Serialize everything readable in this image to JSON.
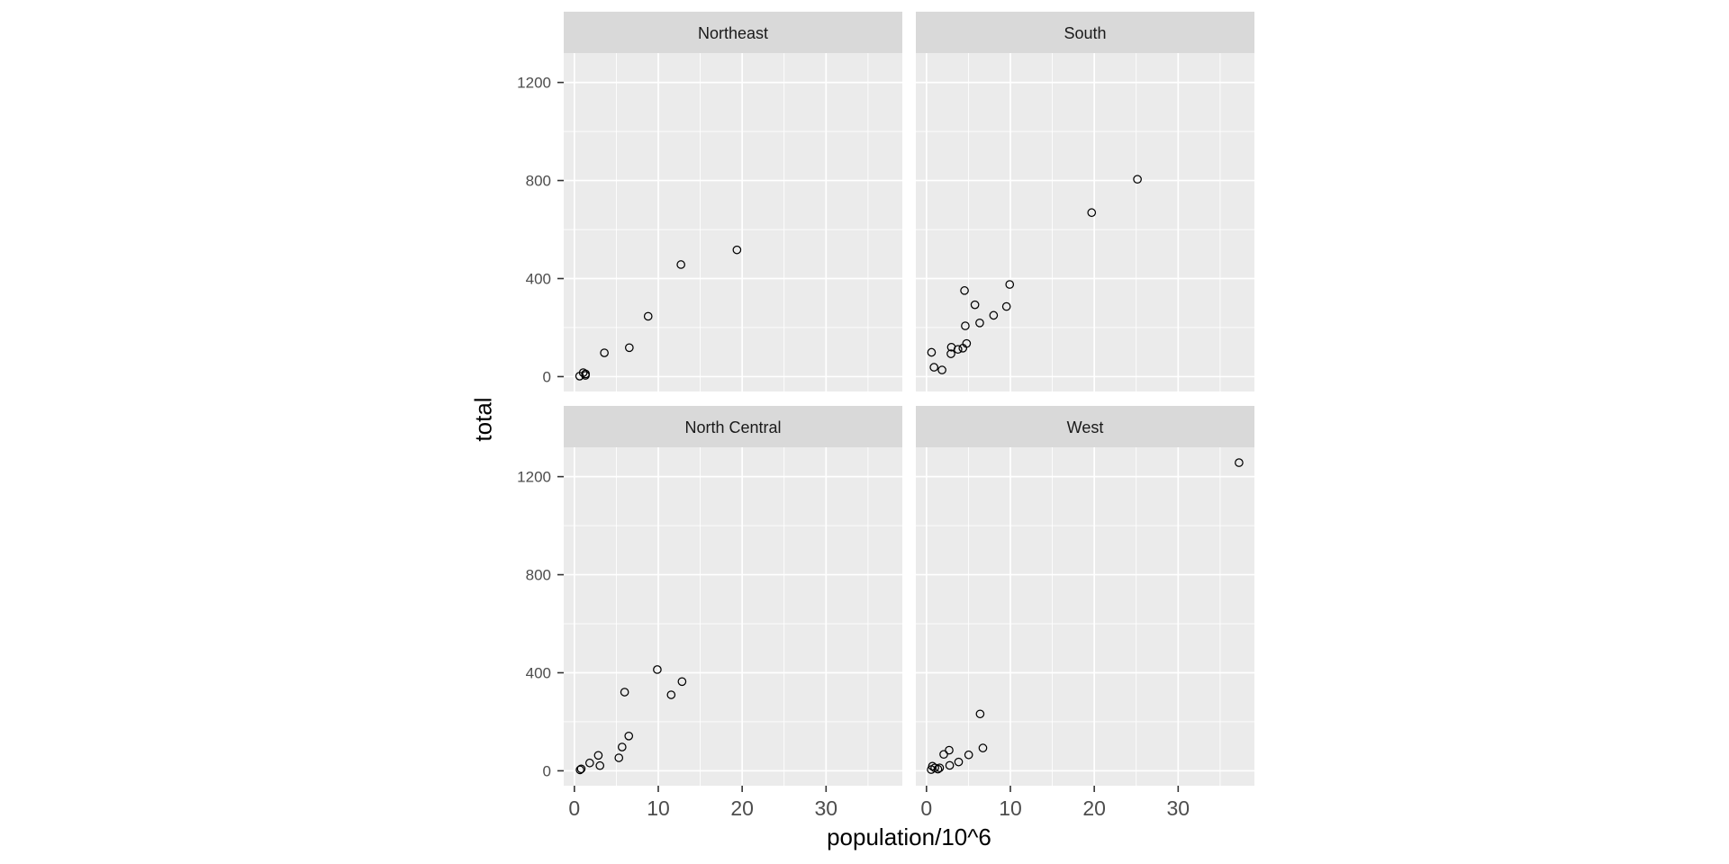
{
  "figure": {
    "background": "#FFFFFF",
    "panel_bg": "#EBEBEB",
    "strip_bg": "#D9D9D9",
    "strip_text_color": "#1A1A1A",
    "grid_color": "#FFFFFF",
    "tick_mark_color": "#333333",
    "axis_text_color": "#4D4D4D",
    "axis_title_color": "#000000",
    "point_color": "#000000"
  },
  "chart_data": {
    "type": "scatter",
    "title": "",
    "xlabel": "population/10^6",
    "ylabel": "total",
    "xlim": [
      -1.27,
      39.09
    ],
    "ylim": [
      -60.75,
      1319.75
    ],
    "x_ticks": [
      0,
      10,
      20,
      30
    ],
    "x_minor_ticks": [
      5,
      15,
      25,
      35
    ],
    "y_ticks": [
      0,
      400,
      800,
      1200
    ],
    "y_minor_ticks": [
      200,
      600,
      1000
    ],
    "grid": "on",
    "legend": "none",
    "point_style": "open-circle",
    "facets": [
      {
        "label": "Northeast",
        "points": [
          [
            3.574,
            97
          ],
          [
            1.328,
            11
          ],
          [
            6.548,
            118
          ],
          [
            1.316,
            5
          ],
          [
            8.792,
            246
          ],
          [
            19.378,
            517
          ],
          [
            12.702,
            457
          ],
          [
            1.053,
            16
          ],
          [
            0.626,
            2
          ]
        ]
      },
      {
        "label": "South",
        "points": [
          [
            4.78,
            135
          ],
          [
            2.916,
            93
          ],
          [
            0.898,
            38
          ],
          [
            0.602,
            99
          ],
          [
            19.688,
            669
          ],
          [
            9.92,
            376
          ],
          [
            4.339,
            116
          ],
          [
            4.533,
            351
          ],
          [
            5.774,
            293
          ],
          [
            2.967,
            120
          ],
          [
            9.535,
            286
          ],
          [
            3.751,
            111
          ],
          [
            4.625,
            207
          ],
          [
            6.346,
            219
          ],
          [
            25.146,
            805
          ],
          [
            8.001,
            250
          ],
          [
            1.853,
            27
          ]
        ]
      },
      {
        "label": "North Central",
        "points": [
          [
            12.831,
            364
          ],
          [
            6.484,
            142
          ],
          [
            3.046,
            21
          ],
          [
            2.853,
            63
          ],
          [
            9.884,
            413
          ],
          [
            5.304,
            53
          ],
          [
            5.989,
            321
          ],
          [
            1.826,
            32
          ],
          [
            0.673,
            4
          ],
          [
            11.537,
            310
          ],
          [
            0.814,
            8
          ],
          [
            5.687,
            97
          ]
        ]
      },
      {
        "label": "West",
        "points": [
          [
            0.71,
            19
          ],
          [
            6.392,
            232
          ],
          [
            37.254,
            1257
          ],
          [
            5.029,
            65
          ],
          [
            1.36,
            7
          ],
          [
            1.568,
            12
          ],
          [
            0.989,
            12
          ],
          [
            2.701,
            84
          ],
          [
            2.059,
            67
          ],
          [
            3.831,
            36
          ],
          [
            2.764,
            22
          ],
          [
            6.725,
            93
          ],
          [
            0.564,
            5
          ]
        ]
      }
    ]
  }
}
